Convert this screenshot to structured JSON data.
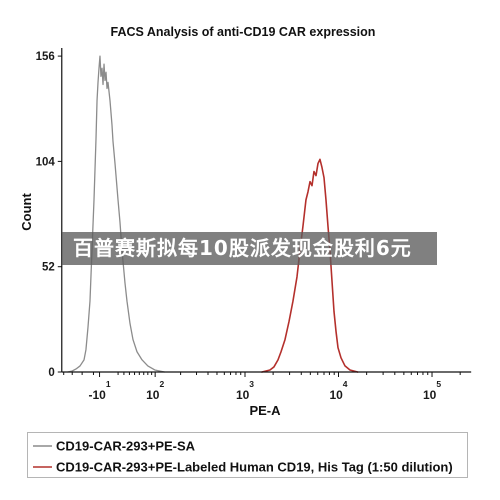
{
  "overlay_banner": {
    "text": "百普赛斯拟每10股派发现金股利6元"
  },
  "chart_data": {
    "type": "line",
    "title": "FACS Analysis of anti-CD19 CAR expression",
    "xlabel": "PE-A",
    "ylabel": "Count",
    "x_scale": "biexponential",
    "xlim": [
      -85,
      262144
    ],
    "ylim": [
      0,
      160
    ],
    "y_ticks": [
      0,
      52,
      104,
      156
    ],
    "x_ticks": [
      {
        "value": -10,
        "base": "-10",
        "exp": "1"
      },
      {
        "value": 100,
        "base": "10",
        "exp": "2"
      },
      {
        "value": 1000,
        "base": "10",
        "exp": "3"
      },
      {
        "value": 10000,
        "base": "10",
        "exp": "4"
      },
      {
        "value": 100000,
        "base": "10",
        "exp": "5"
      }
    ],
    "grid": false,
    "legend": "bottom",
    "series": [
      {
        "name": "CD19-CAR-293+PE-SA",
        "color": "#8c8c8c",
        "points": [
          [
            -70,
            0
          ],
          [
            -60,
            0.5
          ],
          [
            -52,
            1.5
          ],
          [
            -44,
            3
          ],
          [
            -36.5,
            6
          ],
          [
            -33,
            11
          ],
          [
            -29.4,
            22
          ],
          [
            -25.9,
            35
          ],
          [
            -22.5,
            60
          ],
          [
            -19.1,
            85
          ],
          [
            -15.8,
            115
          ],
          [
            -14.1,
            134
          ],
          [
            -12.5,
            143
          ],
          [
            -10.9,
            150
          ],
          [
            -9.3,
            156
          ],
          [
            -7.7,
            146
          ],
          [
            -6,
            150
          ],
          [
            -4.4,
            142
          ],
          [
            -2.8,
            152
          ],
          [
            -1.2,
            144
          ],
          [
            0.4,
            148
          ],
          [
            2,
            140
          ],
          [
            3.6,
            143
          ],
          [
            6.8,
            134
          ],
          [
            10,
            122
          ],
          [
            11.6,
            114
          ],
          [
            14.9,
            103
          ],
          [
            19.9,
            85
          ],
          [
            23.2,
            74
          ],
          [
            26.7,
            60
          ],
          [
            31.9,
            44
          ],
          [
            35.5,
            35
          ],
          [
            41.1,
            24
          ],
          [
            46.9,
            16
          ],
          [
            55,
            10
          ],
          [
            66,
            6
          ],
          [
            80,
            3
          ],
          [
            99,
            1
          ],
          [
            130,
            0
          ]
        ]
      },
      {
        "name": "CD19-CAR-293+PE-Labeled Human CD19, His Tag (1:50 dilution)",
        "color": "#b4302c",
        "points": [
          [
            1520,
            0
          ],
          [
            1850,
            1
          ],
          [
            2040,
            2.5
          ],
          [
            2255,
            6
          ],
          [
            2430,
            10
          ],
          [
            2680,
            16
          ],
          [
            2960,
            25
          ],
          [
            3260,
            35
          ],
          [
            3600,
            47
          ],
          [
            3875,
            60
          ],
          [
            4170,
            72
          ],
          [
            4490,
            85
          ],
          [
            4720,
            89
          ],
          [
            4960,
            94
          ],
          [
            5210,
            92
          ],
          [
            5470,
            99
          ],
          [
            5750,
            97
          ],
          [
            6040,
            103
          ],
          [
            6340,
            105
          ],
          [
            6660,
            101
          ],
          [
            7000,
            96
          ],
          [
            7350,
            85
          ],
          [
            7720,
            72
          ],
          [
            8110,
            60
          ],
          [
            8520,
            45
          ],
          [
            8950,
            30
          ],
          [
            9410,
            20
          ],
          [
            9880,
            12
          ],
          [
            10640,
            7
          ],
          [
            11740,
            3
          ],
          [
            13270,
            1
          ],
          [
            16000,
            0
          ]
        ]
      }
    ]
  }
}
